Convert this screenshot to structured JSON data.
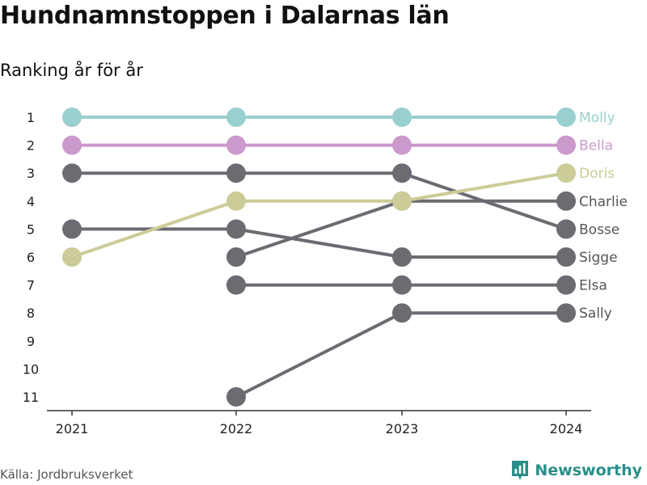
{
  "title": "Hundnamnstoppen i Dalarnas län",
  "subtitle": "Ranking år för år",
  "source": "Källa: Jordbruksverket",
  "brand": {
    "name": "Newsworthy",
    "logo_icon": "newsworthy-chart-icon"
  },
  "colors": {
    "molly": "#9acfcf",
    "bella": "#cc99cc",
    "doris": "#cccc99",
    "gray": "#6b6b72"
  },
  "chart_data": {
    "type": "line",
    "title": "Hundnamnstoppen i Dalarnas län",
    "subtitle": "Ranking år för år",
    "x": [
      "2021",
      "2022",
      "2023",
      "2024"
    ],
    "y_ticks": [
      "1",
      "2",
      "3",
      "4",
      "5",
      "6",
      "7",
      "8",
      "9",
      "10",
      "11"
    ],
    "ylim": [
      1,
      11
    ],
    "y_reversed": true,
    "grid": false,
    "series": [
      {
        "name": "Molly",
        "color_key": "molly",
        "values": [
          1,
          1,
          1,
          1
        ]
      },
      {
        "name": "Bella",
        "color_key": "bella",
        "values": [
          2,
          2,
          2,
          2
        ]
      },
      {
        "name": "Charlie",
        "color_key": "gray",
        "values": [
          null,
          6,
          4,
          4
        ]
      },
      {
        "name": "Bosse",
        "color_key": "gray",
        "values": [
          3,
          3,
          3,
          5
        ]
      },
      {
        "name": "Sigge",
        "color_key": "gray",
        "values": [
          5,
          5,
          6,
          6
        ]
      },
      {
        "name": "Elsa",
        "color_key": "gray",
        "values": [
          null,
          7,
          7,
          7
        ]
      },
      {
        "name": "Sally",
        "color_key": "gray",
        "values": [
          null,
          11,
          8,
          8
        ]
      },
      {
        "name": "Doris",
        "color_key": "doris",
        "values": [
          6,
          4,
          4,
          3
        ]
      }
    ]
  }
}
